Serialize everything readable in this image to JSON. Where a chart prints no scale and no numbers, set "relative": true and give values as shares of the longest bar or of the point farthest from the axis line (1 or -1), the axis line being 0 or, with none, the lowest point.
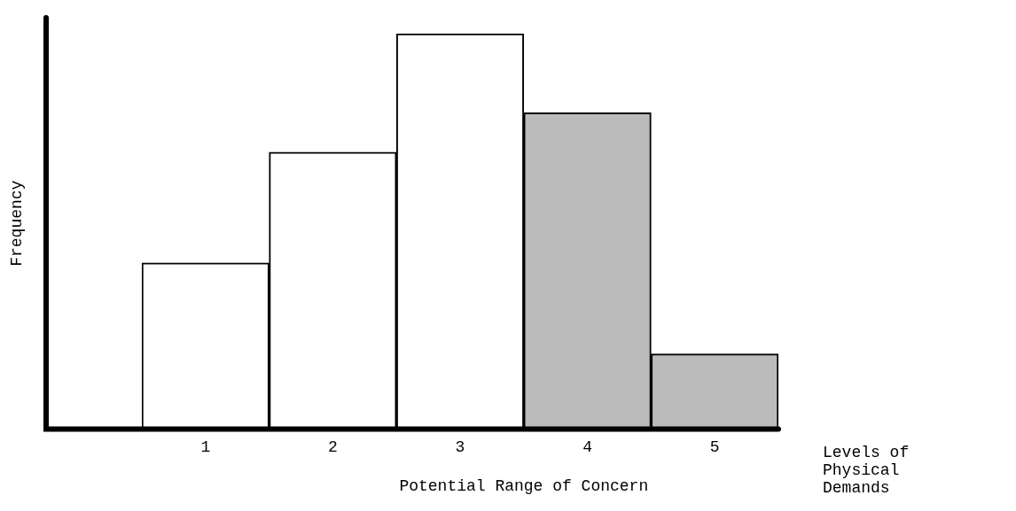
{
  "chart_data": {
    "type": "bar",
    "relative": true,
    "ylabel": "Frequency",
    "xlabel": "Levels of Physical Demands",
    "categories": [
      "1",
      "2",
      "3",
      "4",
      "5"
    ],
    "values": [
      0.42,
      0.7,
      1,
      0.8,
      0.19
    ],
    "colors": [
      "#ffffff",
      "#ffffff",
      "#ffffff",
      "#bbbbbb",
      "#bbbbbb"
    ],
    "annotations": [
      "Potential Range of Concern"
    ],
    "grid": false,
    "legend": false
  }
}
